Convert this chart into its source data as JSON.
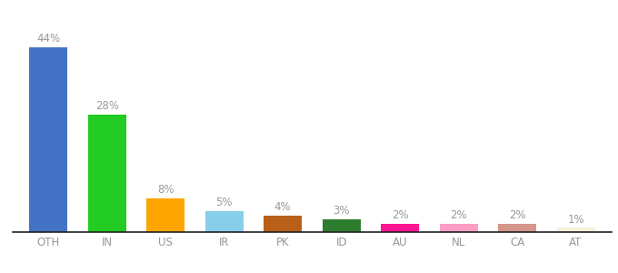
{
  "categories": [
    "OTH",
    "IN",
    "US",
    "IR",
    "PK",
    "ID",
    "AU",
    "NL",
    "CA",
    "AT"
  ],
  "values": [
    44,
    28,
    8,
    5,
    4,
    3,
    2,
    2,
    2,
    1
  ],
  "labels": [
    "44%",
    "28%",
    "8%",
    "5%",
    "4%",
    "3%",
    "2%",
    "2%",
    "2%",
    "1%"
  ],
  "bar_colors": [
    "#4472C4",
    "#22CC22",
    "#FFA500",
    "#87CEEB",
    "#B8601A",
    "#2E7D2E",
    "#FF1493",
    "#FF9EC4",
    "#D4968A",
    "#F5F0DC"
  ],
  "background_color": "#ffffff",
  "ylim": [
    0,
    50
  ],
  "label_fontsize": 8.5,
  "tick_fontsize": 8.5,
  "label_color": "#999999"
}
